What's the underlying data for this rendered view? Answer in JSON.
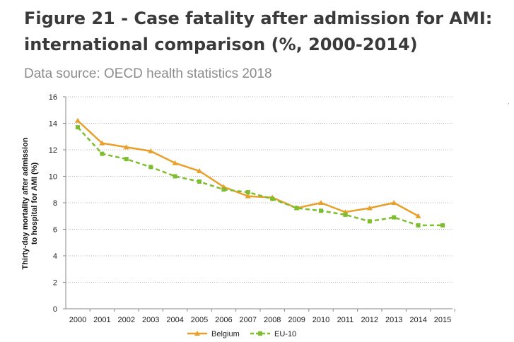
{
  "figure": {
    "title": "Figure 21 - Case fatality after admission for AMI: international comparison (%, 2000-2014)",
    "source": "Data source: OECD health statistics 2018"
  },
  "chart_data": {
    "type": "line",
    "title": "",
    "xlabel": "",
    "ylabel": "Thirty-day mortality after admission to hospital for AMI (%)",
    "x": [
      "2000",
      "2001",
      "2002",
      "2003",
      "2004",
      "2005",
      "2006",
      "2007",
      "2008",
      "2009",
      "2010",
      "2011",
      "2012",
      "2013",
      "2014",
      "2015"
    ],
    "ylim": [
      0,
      16
    ],
    "yticks": [
      0,
      2,
      4,
      6,
      8,
      10,
      12,
      14,
      16
    ],
    "grid": "horizontal dotted",
    "legend": "bottom-center",
    "series": [
      {
        "name": "Belgium",
        "color": "#E8A02A",
        "marker": "triangle",
        "dash": "solid",
        "values": [
          14.2,
          12.5,
          12.2,
          11.9,
          11.0,
          10.4,
          9.2,
          8.5,
          8.4,
          7.6,
          8.0,
          7.3,
          7.6,
          8.0,
          7.0,
          null
        ]
      },
      {
        "name": "EU-10",
        "color": "#7DBE2E",
        "marker": "square",
        "dash": "dashed",
        "values": [
          13.7,
          11.7,
          11.3,
          10.7,
          10.0,
          9.6,
          9.0,
          8.8,
          8.3,
          7.6,
          7.4,
          7.1,
          6.6,
          6.9,
          6.3,
          6.3
        ]
      }
    ]
  }
}
